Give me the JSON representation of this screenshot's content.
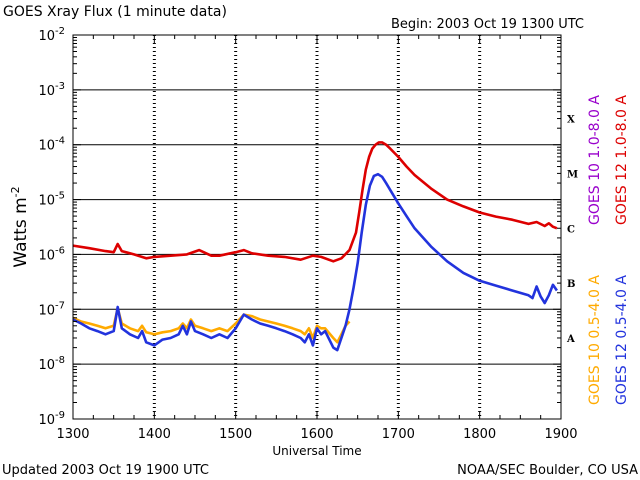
{
  "header": {
    "title": "GOES Xray Flux (1 minute data)",
    "begin": "Begin: 2003 Oct 19 1300 UTC"
  },
  "footer": {
    "updated": "Updated 2003 Oct 19 1900 UTC",
    "credit": "NOAA/SEC Boulder, CO USA"
  },
  "chart_data": {
    "type": "line",
    "title": "GOES Xray Flux (1 minute data)",
    "xlabel": "Universal Time",
    "ylabel": "Watts m",
    "ylabel_sup": "-2",
    "x_ticks": [
      "1300",
      "1400",
      "1500",
      "1600",
      "1700",
      "1800",
      "1900"
    ],
    "xlim": [
      1300,
      1900
    ],
    "y_scale": "log",
    "ylim": [
      1e-09,
      0.01
    ],
    "y_ticks": [
      {
        "base": "10",
        "exp": "-9",
        "value": 1e-09
      },
      {
        "base": "10",
        "exp": "-8",
        "value": 1e-08
      },
      {
        "base": "10",
        "exp": "-7",
        "value": 1e-07
      },
      {
        "base": "10",
        "exp": "-6",
        "value": 1e-06
      },
      {
        "base": "10",
        "exp": "-5",
        "value": 1e-05
      },
      {
        "base": "10",
        "exp": "-4",
        "value": 0.0001
      },
      {
        "base": "10",
        "exp": "-3",
        "value": 0.001
      },
      {
        "base": "10",
        "exp": "-2",
        "value": 0.01
      }
    ],
    "grid": "horizontal lines at each decade from 1e-8 to 1e-3",
    "flare_classes": [
      {
        "label": "A",
        "value": 3e-08
      },
      {
        "label": "B",
        "value": 3e-07
      },
      {
        "label": "C",
        "value": 3e-06
      },
      {
        "label": "M",
        "value": 3e-05
      },
      {
        "label": "X",
        "value": 0.0003
      }
    ],
    "legend_placement": "right (vertical text)",
    "legend": [
      {
        "text": "GOES 10 1.0-8.0 A",
        "color": "#9900cc"
      },
      {
        "text": "GOES 12 1.0-8.0 A",
        "color": "#dd0000"
      },
      {
        "text": "GOES 10 0.5-4.0 A",
        "color": "#ffaa00"
      },
      {
        "text": "GOES 12 0.5-4.0 A",
        "color": "#2233dd"
      }
    ],
    "series": [
      {
        "name": "GOES 12 1.0-8.0 A",
        "color": "#dd0000",
        "x": [
          1300,
          1320,
          1340,
          1350,
          1355,
          1360,
          1375,
          1390,
          1400,
          1420,
          1440,
          1455,
          1470,
          1480,
          1500,
          1510,
          1520,
          1540,
          1560,
          1580,
          1595,
          1605,
          1620,
          1630,
          1640,
          1648,
          1652,
          1656,
          1660,
          1664,
          1668,
          1672,
          1676,
          1680,
          1685,
          1690,
          1700,
          1710,
          1720,
          1740,
          1760,
          1780,
          1800,
          1820,
          1840,
          1860,
          1870,
          1880,
          1885,
          1890,
          1895
        ],
        "y": [
          1.45e-06,
          1.3e-06,
          1.15e-06,
          1.1e-06,
          1.55e-06,
          1.15e-06,
          1e-06,
          8.5e-07,
          9e-07,
          9.5e-07,
          1e-06,
          1.2e-06,
          9.5e-07,
          9.5e-07,
          1.1e-06,
          1.2e-06,
          1.05e-06,
          9.5e-07,
          9e-07,
          8e-07,
          9.5e-07,
          9e-07,
          7.5e-07,
          8.5e-07,
          1.2e-06,
          2.5e-06,
          6e-06,
          1.5e-05,
          3.5e-05,
          6e-05,
          8.5e-05,
          0.0001,
          0.00011,
          0.00011,
          0.0001,
          8.5e-05,
          6e-05,
          4e-05,
          2.8e-05,
          1.6e-05,
          1e-05,
          7.5e-06,
          5.8e-06,
          4.9e-06,
          4.3e-06,
          3.6e-06,
          3.9e-06,
          3.3e-06,
          3.7e-06,
          3.2e-06,
          3e-06
        ]
      },
      {
        "name": "GOES 10 0.5-4.0 A",
        "color": "#ffaa00",
        "x": [
          1300,
          1310,
          1320,
          1330,
          1340,
          1350,
          1355,
          1360,
          1370,
          1380,
          1385,
          1390,
          1400,
          1410,
          1420,
          1430,
          1435,
          1440,
          1445,
          1450,
          1460,
          1470,
          1480,
          1490,
          1500,
          1510,
          1520,
          1530,
          1540,
          1550,
          1560,
          1570,
          1580,
          1585,
          1590,
          1595,
          1600,
          1605,
          1610,
          1620,
          1625,
          1630,
          1635,
          1640
        ],
        "y": [
          7e-08,
          6e-08,
          5.5e-08,
          5e-08,
          4.5e-08,
          5e-08,
          1.05e-07,
          5.5e-08,
          4.5e-08,
          4e-08,
          5e-08,
          3.8e-08,
          3.5e-08,
          3.8e-08,
          4e-08,
          4.5e-08,
          5.5e-08,
          4.5e-08,
          6.5e-08,
          5e-08,
          4.5e-08,
          4e-08,
          4.5e-08,
          4e-08,
          5.5e-08,
          8e-08,
          7.5e-08,
          6.5e-08,
          6e-08,
          5.5e-08,
          5e-08,
          4.5e-08,
          4e-08,
          3.5e-08,
          4.5e-08,
          3e-08,
          5e-08,
          4.5e-08,
          4.5e-08,
          3e-08,
          2.5e-08,
          3.5e-08,
          5e-08,
          6e-08
        ]
      },
      {
        "name": "GOES 12 0.5-4.0 A",
        "color": "#2233dd",
        "x": [
          1300,
          1310,
          1320,
          1330,
          1340,
          1350,
          1355,
          1360,
          1370,
          1380,
          1385,
          1390,
          1400,
          1410,
          1420,
          1430,
          1435,
          1440,
          1445,
          1450,
          1460,
          1470,
          1480,
          1490,
          1500,
          1510,
          1520,
          1530,
          1540,
          1550,
          1560,
          1570,
          1580,
          1585,
          1590,
          1595,
          1600,
          1605,
          1610,
          1620,
          1625,
          1630,
          1635,
          1640,
          1645,
          1650,
          1655,
          1660,
          1665,
          1670,
          1675,
          1680,
          1685,
          1690,
          1700,
          1710,
          1720,
          1740,
          1760,
          1780,
          1800,
          1820,
          1840,
          1860,
          1865,
          1870,
          1875,
          1880,
          1885,
          1890,
          1895
        ],
        "y": [
          6.5e-08,
          5.5e-08,
          4.5e-08,
          4e-08,
          3.5e-08,
          4e-08,
          1.1e-07,
          4.5e-08,
          3.5e-08,
          3e-08,
          4e-08,
          2.5e-08,
          2.2e-08,
          2.8e-08,
          3e-08,
          3.5e-08,
          5e-08,
          3.5e-08,
          6e-08,
          4e-08,
          3.5e-08,
          3e-08,
          3.5e-08,
          3e-08,
          4.5e-08,
          8e-08,
          6.5e-08,
          5.5e-08,
          5e-08,
          4.5e-08,
          4e-08,
          3.5e-08,
          3e-08,
          2.5e-08,
          3.5e-08,
          2.2e-08,
          4.5e-08,
          3.5e-08,
          4e-08,
          2e-08,
          1.8e-08,
          3e-08,
          5e-08,
          1e-07,
          2.5e-07,
          7e-07,
          2.5e-06,
          8e-06,
          1.8e-05,
          2.7e-05,
          2.9e-05,
          2.6e-05,
          2e-05,
          1.5e-05,
          8.5e-06,
          5e-06,
          3e-06,
          1.4e-06,
          7.5e-07,
          4.6e-07,
          3.3e-07,
          2.7e-07,
          2.2e-07,
          1.8e-07,
          1.6e-07,
          2.6e-07,
          1.7e-07,
          1.3e-07,
          1.8e-07,
          2.8e-07,
          2.2e-07
        ]
      }
    ]
  }
}
